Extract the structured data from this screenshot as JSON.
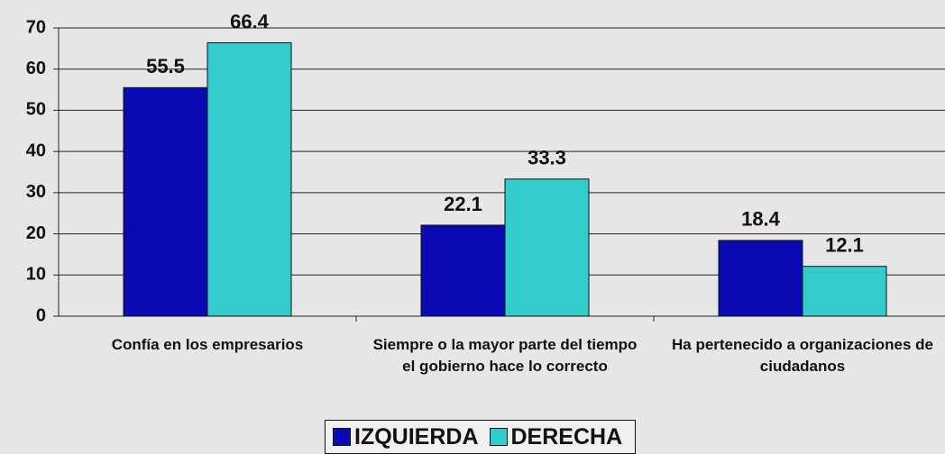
{
  "chart_data": {
    "type": "bar",
    "categories": [
      "Confía en los empresarios",
      "Siempre o la mayor parte del tiempo el gobierno hace lo correcto",
      "Ha pertenecido a organizaciones de ciudadanos"
    ],
    "series": [
      {
        "name": "IZQUIERDA",
        "color": "#0a0ab4",
        "values": [
          55.5,
          22.1,
          18.4
        ]
      },
      {
        "name": "DERECHA",
        "color": "#33cccc",
        "values": [
          66.4,
          33.3,
          12.1
        ]
      }
    ],
    "ylim": [
      0,
      70
    ],
    "yticks": [
      0,
      10,
      20,
      30,
      40,
      50,
      60,
      70
    ],
    "grid": true,
    "legend": "bottom"
  }
}
